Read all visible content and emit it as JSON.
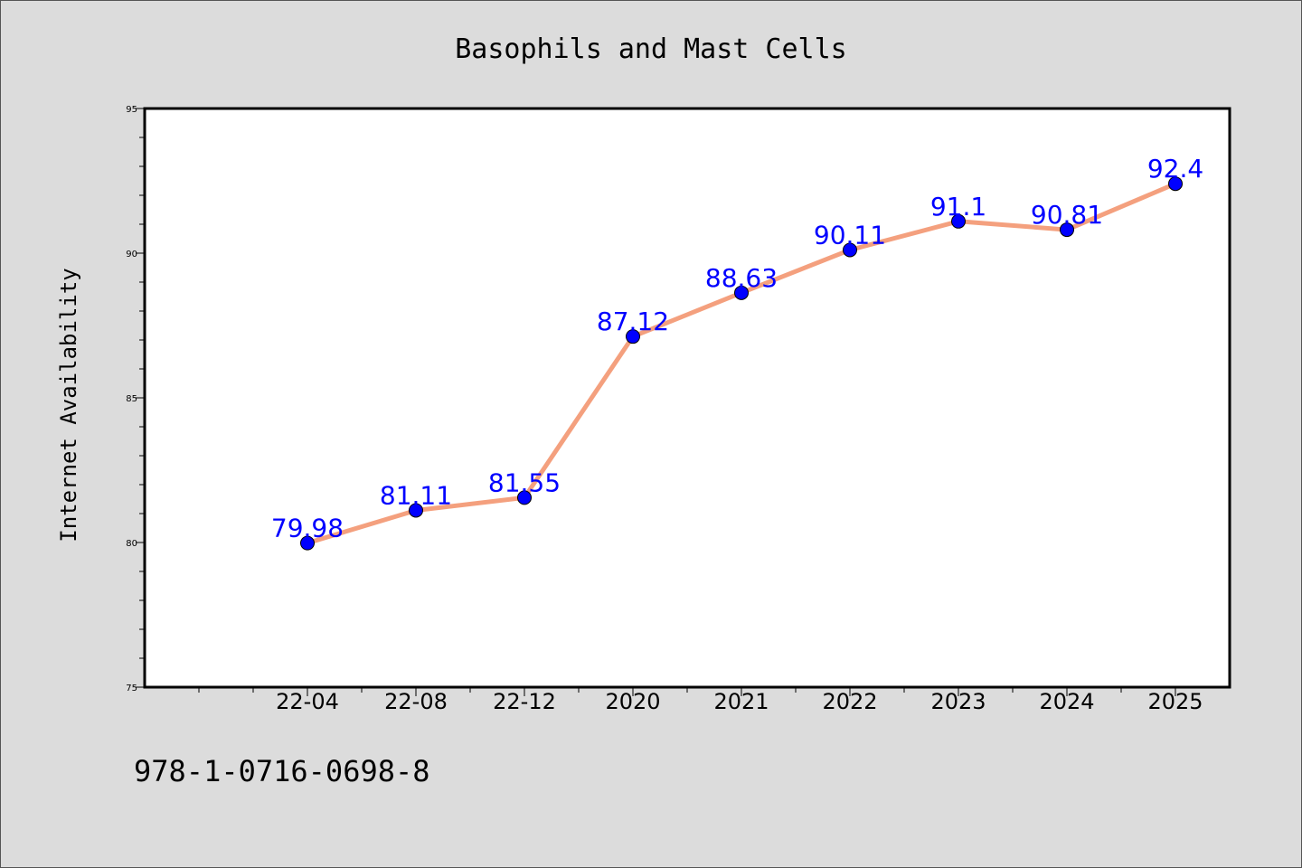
{
  "chart_data": {
    "type": "line",
    "title": "Basophils and Mast Cells",
    "xlabel": "",
    "ylabel": "Internet Availability",
    "categories": [
      "22-04",
      "22-08",
      "22-12",
      "2020",
      "2021",
      "2022",
      "2023",
      "2024",
      "2025"
    ],
    "series": [
      {
        "values": [
          79.98,
          81.11,
          81.55,
          87.12,
          88.63,
          90.11,
          91.1,
          90.81,
          92.4
        ],
        "labels": [
          "79.98",
          "81.11",
          "81.55",
          "87.12",
          "88.63",
          "90.11",
          "91.1",
          "90.81",
          "92.4"
        ],
        "line_color": "#f4a07e",
        "marker_color": "#0000ff"
      }
    ],
    "ylim": [
      75,
      95
    ],
    "yticks": [
      75,
      80,
      85,
      90,
      95
    ],
    "ytick_labels": [
      "75",
      "80",
      "85",
      "90",
      "95"
    ],
    "grid": false,
    "legend": "none"
  },
  "footer": {
    "text": "978-1-0716-0698-8"
  },
  "colors": {
    "page_background": "#dcdcdc",
    "plot_background": "#ffffff",
    "line": "#f4a07e",
    "marker": "#0000ff",
    "data_label": "#0000ff"
  }
}
